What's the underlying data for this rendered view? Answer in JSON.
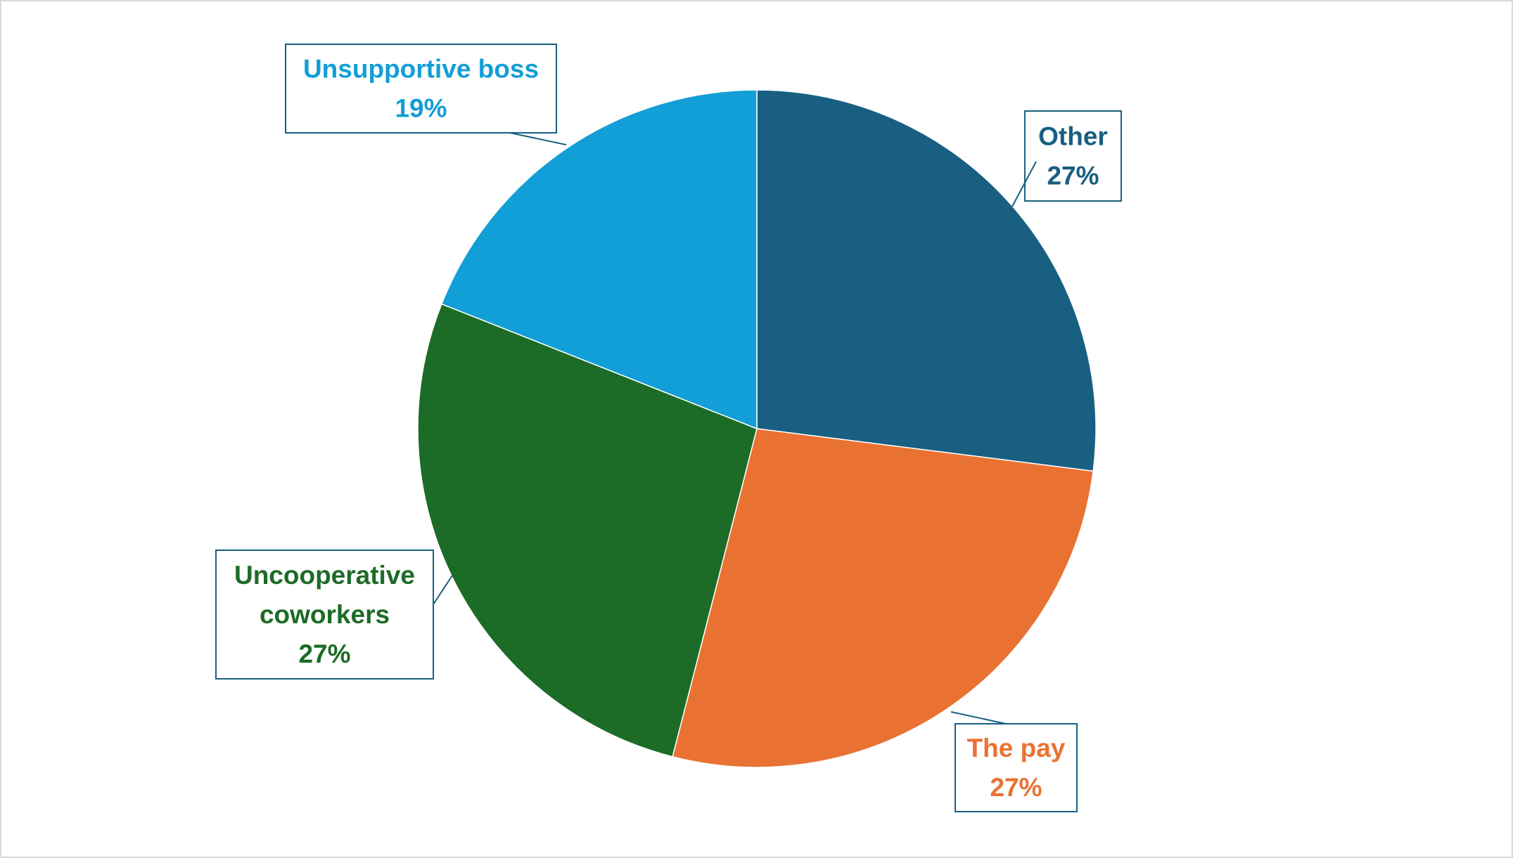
{
  "chart_data": {
    "type": "pie",
    "title": "",
    "slices": [
      {
        "label": "Other",
        "value": 27,
        "value_label": "27%",
        "color": "#185F82"
      },
      {
        "label": "The pay",
        "value": 27,
        "value_label": "27%",
        "color": "#E97233"
      },
      {
        "label": "Uncooperative coworkers",
        "label_lines": [
          "Uncooperative",
          "coworkers"
        ],
        "value": 27,
        "value_label": "27%",
        "color": "#1C6B26"
      },
      {
        "label": "Unsupportive boss",
        "value": 19,
        "value_label": "19%",
        "color": "#129ED6"
      }
    ],
    "start_angle_deg": 0,
    "direction": "clockwise",
    "legend": "none",
    "data_labels": "callouts"
  }
}
